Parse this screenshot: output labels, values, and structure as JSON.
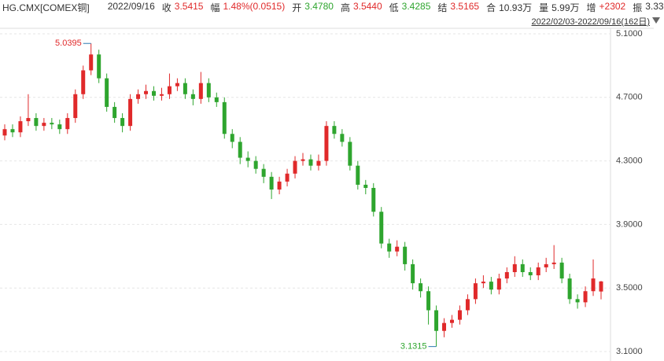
{
  "header": {
    "symbol": "HG.CMX[COMEX铜]",
    "date": "2022/09/16",
    "items": [
      {
        "label": "收",
        "value": "3.5415",
        "color": "#e0292a"
      },
      {
        "label": "幅",
        "value": "1.48%(0.0515)",
        "color": "#e0292a"
      },
      {
        "label": "开",
        "value": "3.4780",
        "color": "#2ea52e"
      },
      {
        "label": "高",
        "value": "3.5440",
        "color": "#e0292a"
      },
      {
        "label": "低",
        "value": "3.4285",
        "color": "#2ea52e"
      },
      {
        "label": "结",
        "value": "3.5165",
        "color": "#e0292a"
      },
      {
        "label": "合",
        "value": "10.93万",
        "color": "#333333"
      },
      {
        "label": "量",
        "value": "5.99万",
        "color": "#333333"
      },
      {
        "label": "增",
        "value": "+2302",
        "color": "#e0292a"
      },
      {
        "label": "振",
        "value": "3.33",
        "color": "#333333"
      }
    ],
    "range": "2022/02/03-2022/09/16(162日)"
  },
  "chart_data": {
    "type": "candlestick",
    "up_color": "#e0292a",
    "down_color": "#2ea52e",
    "grid": true,
    "ylim": [
      3.1,
      5.1
    ],
    "yticks": [
      {
        "value": 5.1,
        "label": "5.1000"
      },
      {
        "value": 4.7,
        "label": "4.7000"
      },
      {
        "value": 4.3,
        "label": "4.3000"
      },
      {
        "value": 3.9,
        "label": "3.9000"
      },
      {
        "value": 3.5,
        "label": "3.5000"
      },
      {
        "value": 3.1,
        "label": "3.1000"
      }
    ],
    "open": [
      4.46,
      4.5,
      4.48,
      4.55,
      4.57,
      4.52,
      4.54,
      4.53,
      4.5,
      4.57,
      4.72,
      4.87,
      4.97,
      4.82,
      4.64,
      4.57,
      4.52,
      4.69,
      4.72,
      4.74,
      4.71,
      4.72,
      4.77,
      4.79,
      4.72,
      4.69,
      4.79,
      4.7,
      4.67,
      4.47,
      4.42,
      4.32,
      4.3,
      4.25,
      4.2,
      4.12,
      4.17,
      4.22,
      4.3,
      4.31,
      4.27,
      4.3,
      4.52,
      4.47,
      4.42,
      4.27,
      4.15,
      4.13,
      3.98,
      3.78,
      3.73,
      3.76,
      3.65,
      3.53,
      3.48,
      3.36,
      3.23,
      3.28,
      3.3,
      3.36,
      3.43,
      3.53,
      3.54,
      3.49,
      3.56,
      3.6,
      3.65,
      3.6,
      3.58,
      3.63,
      3.65,
      3.66,
      3.56,
      3.43,
      3.41,
      3.48,
      3.478
    ],
    "high": [
      4.53,
      4.53,
      4.58,
      4.72,
      4.6,
      4.57,
      4.57,
      4.56,
      4.6,
      4.75,
      4.9,
      5.0395,
      5.0,
      4.85,
      4.67,
      4.6,
      4.72,
      4.75,
      4.78,
      4.77,
      4.76,
      4.85,
      4.82,
      4.82,
      4.75,
      4.86,
      4.82,
      4.73,
      4.7,
      4.5,
      4.45,
      4.36,
      4.33,
      4.28,
      4.23,
      4.2,
      4.25,
      4.33,
      4.35,
      4.34,
      4.34,
      4.55,
      4.55,
      4.5,
      4.45,
      4.3,
      4.18,
      4.16,
      4.01,
      3.81,
      3.8,
      3.79,
      3.68,
      3.56,
      3.51,
      3.39,
      3.31,
      3.33,
      3.39,
      3.46,
      3.56,
      3.58,
      3.57,
      3.59,
      3.63,
      3.7,
      3.68,
      3.63,
      3.66,
      3.69,
      3.77,
      3.69,
      3.59,
      3.46,
      3.51,
      3.68,
      3.544
    ],
    "low": [
      4.43,
      4.45,
      4.45,
      4.52,
      4.49,
      4.49,
      4.5,
      4.47,
      4.47,
      4.54,
      4.69,
      4.84,
      4.79,
      4.61,
      4.54,
      4.48,
      4.49,
      4.66,
      4.69,
      4.68,
      4.68,
      4.69,
      4.74,
      4.69,
      4.65,
      4.66,
      4.67,
      4.64,
      4.44,
      4.38,
      4.28,
      4.26,
      4.22,
      4.16,
      4.06,
      4.09,
      4.14,
      4.19,
      4.27,
      4.24,
      4.24,
      4.27,
      4.44,
      4.39,
      4.24,
      4.12,
      4.09,
      3.95,
      3.75,
      3.69,
      3.7,
      3.61,
      3.49,
      3.44,
      3.27,
      3.1315,
      3.19,
      3.25,
      3.27,
      3.33,
      3.4,
      3.5,
      3.46,
      3.46,
      3.53,
      3.57,
      3.57,
      3.55,
      3.55,
      3.6,
      3.62,
      3.53,
      3.4,
      3.37,
      3.38,
      3.45,
      3.4285
    ],
    "close": [
      4.5,
      4.48,
      4.55,
      4.57,
      4.52,
      4.54,
      4.53,
      4.5,
      4.57,
      4.72,
      4.87,
      4.97,
      4.82,
      4.64,
      4.57,
      4.52,
      4.69,
      4.72,
      4.74,
      4.71,
      4.72,
      4.77,
      4.79,
      4.72,
      4.69,
      4.79,
      4.7,
      4.67,
      4.47,
      4.42,
      4.32,
      4.3,
      4.25,
      4.2,
      4.12,
      4.17,
      4.22,
      4.3,
      4.31,
      4.27,
      4.3,
      4.52,
      4.47,
      4.42,
      4.27,
      4.15,
      4.13,
      3.98,
      3.78,
      3.73,
      3.76,
      3.65,
      3.53,
      3.48,
      3.36,
      3.23,
      3.28,
      3.3,
      3.36,
      3.43,
      3.53,
      3.54,
      3.49,
      3.56,
      3.6,
      3.65,
      3.6,
      3.58,
      3.63,
      3.65,
      3.66,
      3.56,
      3.43,
      3.41,
      3.48,
      3.56,
      3.5415
    ]
  }
}
